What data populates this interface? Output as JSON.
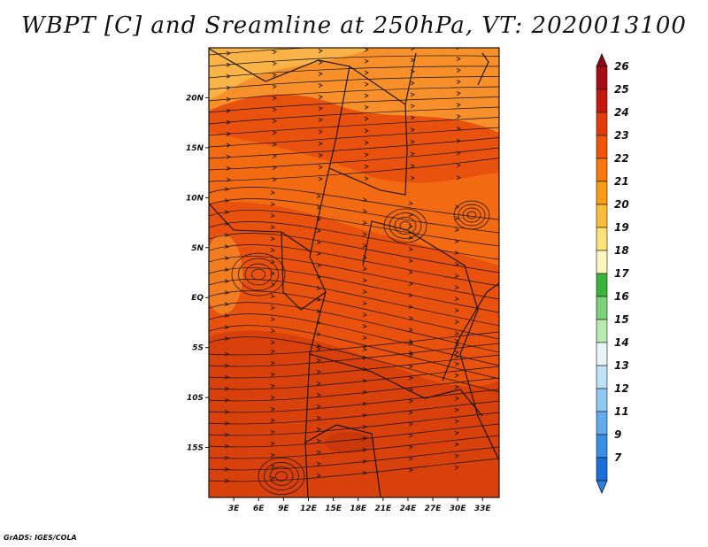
{
  "title": "WBPT [C] and Sreamline at 250hPa, VT: 2020013100",
  "footer": "GrADS: IGES/COLA",
  "map": {
    "lon_min": 0,
    "lon_max": 35,
    "lat_min": -20,
    "lat_max": 25,
    "lat_ticks": [
      {
        "value": 20,
        "label": "20N"
      },
      {
        "value": 15,
        "label": "15N"
      },
      {
        "value": 10,
        "label": "10N"
      },
      {
        "value": 5,
        "label": "5N"
      },
      {
        "value": 0,
        "label": "EQ"
      },
      {
        "value": -5,
        "label": "5S"
      },
      {
        "value": -10,
        "label": "10S"
      },
      {
        "value": -15,
        "label": "15S"
      }
    ],
    "lon_ticks": [
      {
        "value": 3,
        "label": "3E"
      },
      {
        "value": 6,
        "label": "6E"
      },
      {
        "value": 9,
        "label": "9E"
      },
      {
        "value": 12,
        "label": "12E"
      },
      {
        "value": 15,
        "label": "15E"
      },
      {
        "value": 18,
        "label": "18E"
      },
      {
        "value": 21,
        "label": "21E"
      },
      {
        "value": 24,
        "label": "24E"
      },
      {
        "value": 27,
        "label": "27E"
      },
      {
        "value": 30,
        "label": "30E"
      },
      {
        "value": 33,
        "label": "33E"
      }
    ]
  },
  "colorbar": {
    "levels": [
      {
        "label": "26",
        "color": "#a50f15"
      },
      {
        "label": "25",
        "color": "#c41a10"
      },
      {
        "label": "24",
        "color": "#e33a0c"
      },
      {
        "label": "23",
        "color": "#f2540a"
      },
      {
        "label": "22",
        "color": "#f7780f"
      },
      {
        "label": "21",
        "color": "#f99c1a"
      },
      {
        "label": "20",
        "color": "#fbbd3c"
      },
      {
        "label": "19",
        "color": "#fde27a"
      },
      {
        "label": "18",
        "color": "#fff5c0"
      },
      {
        "label": "17",
        "color": "#3cb43c"
      },
      {
        "label": "16",
        "color": "#7ed37a"
      },
      {
        "label": "15",
        "color": "#b7ebb2"
      },
      {
        "label": "14",
        "color": "#e8f6fb"
      },
      {
        "label": "13",
        "color": "#bfe2f7"
      },
      {
        "label": "12",
        "color": "#91c9f2"
      },
      {
        "label": "11",
        "color": "#63acec"
      },
      {
        "label": "9",
        "color": "#3a8fe4"
      },
      {
        "label": "7",
        "color": "#1a6fd8"
      }
    ],
    "top_arrow_color": "#8b0a0f",
    "bottom_arrow_color": "#2a7fe0"
  },
  "colors": {
    "base": "#e8520e",
    "warm": "#f26a12",
    "hot": "#d8400c",
    "cool": "#f7902a",
    "pale": "#f9b347",
    "line": "#111111"
  },
  "icons": {
    "streamline-arrow": "arrow-head",
    "colorbar-up": "triangle-up",
    "colorbar-down": "triangle-down"
  }
}
